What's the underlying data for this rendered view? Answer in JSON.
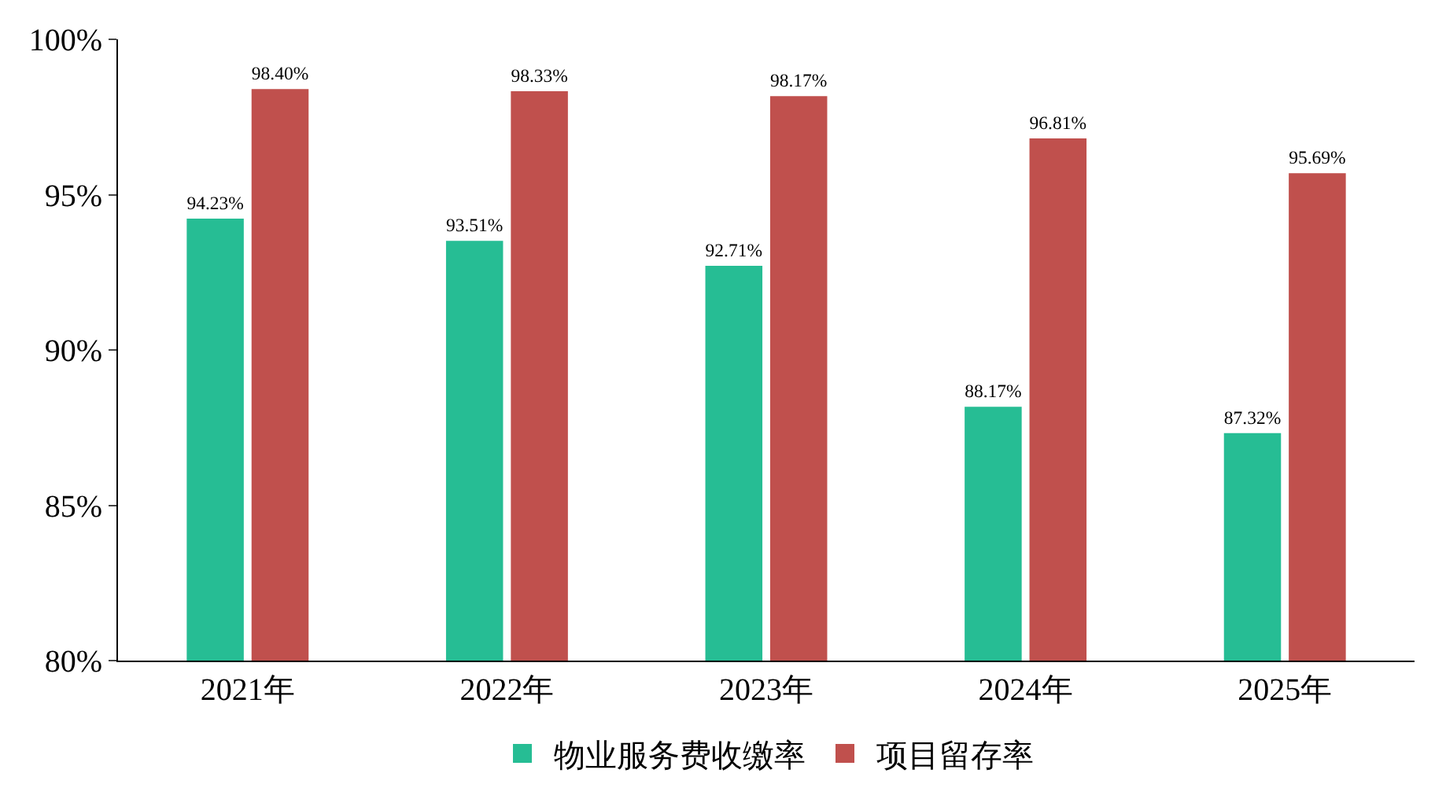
{
  "chart_data": {
    "type": "bar",
    "categories": [
      "2021年",
      "2022年",
      "2023年",
      "2024年",
      "2025年"
    ],
    "series": [
      {
        "name": "物业服务费收缴率",
        "color": "#26bd94",
        "values": [
          94.23,
          93.51,
          92.71,
          88.17,
          87.32
        ],
        "value_labels": [
          "94.23%",
          "93.51%",
          "92.71%",
          "88.17%",
          "87.32%"
        ]
      },
      {
        "name": "项目留存率",
        "color": "#c0504d",
        "values": [
          98.4,
          98.33,
          98.17,
          96.81,
          95.69
        ],
        "value_labels": [
          "98.40%",
          "98.33%",
          "98.17%",
          "96.81%",
          "95.69%"
        ]
      }
    ],
    "ylim": [
      80,
      100
    ],
    "yticks": [
      {
        "value": 80,
        "label": "80%"
      },
      {
        "value": 85,
        "label": "85%"
      },
      {
        "value": 90,
        "label": "90%"
      },
      {
        "value": 95,
        "label": "95%"
      },
      {
        "value": 100,
        "label": "100%"
      }
    ],
    "grid": false,
    "legend": "bottom"
  }
}
